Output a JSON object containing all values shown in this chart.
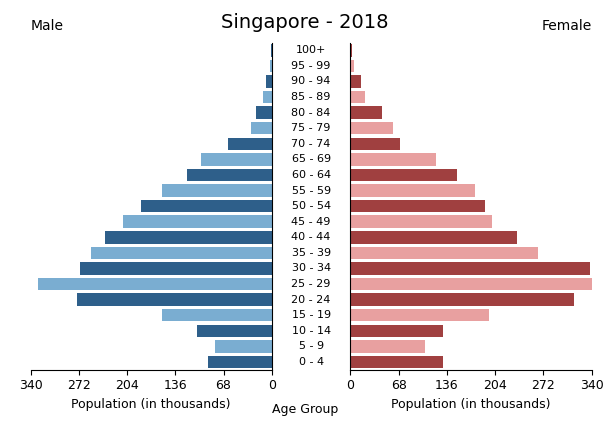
{
  "title": "Singapore - 2018",
  "male_label": "Male",
  "female_label": "Female",
  "xlabel_left": "Population (in thousands)",
  "xlabel_center": "Age Group",
  "xlabel_right": "Population (in thousands)",
  "age_groups": [
    "0 - 4",
    "5 - 9",
    "10 - 14",
    "15 - 19",
    "20 - 24",
    "25 - 29",
    "30 - 34",
    "35 - 39",
    "40 - 44",
    "45 - 49",
    "50 - 54",
    "55 - 59",
    "60 - 64",
    "65 - 69",
    "70 - 74",
    "75 - 79",
    "80 - 84",
    "85 - 89",
    "90 - 94",
    "95 - 99",
    "100+"
  ],
  "male_values": [
    90,
    80,
    105,
    155,
    275,
    330,
    270,
    255,
    235,
    210,
    185,
    155,
    120,
    100,
    62,
    30,
    22,
    13,
    8,
    3,
    1
  ],
  "female_values": [
    130,
    105,
    130,
    195,
    315,
    342,
    338,
    265,
    235,
    200,
    190,
    175,
    150,
    120,
    70,
    60,
    45,
    20,
    15,
    5,
    2
  ],
  "male_colors_dark": "#2e5f8a",
  "male_colors_light": "#7aadd1",
  "female_colors_dark": "#a04040",
  "female_colors_light": "#e8a0a0",
  "xlim": 340,
  "xticks": [
    0,
    68,
    136,
    204,
    272,
    340
  ],
  "background_color": "#ffffff",
  "title_fontsize": 14,
  "label_fontsize": 9,
  "tick_fontsize": 9,
  "bar_height": 0.8
}
